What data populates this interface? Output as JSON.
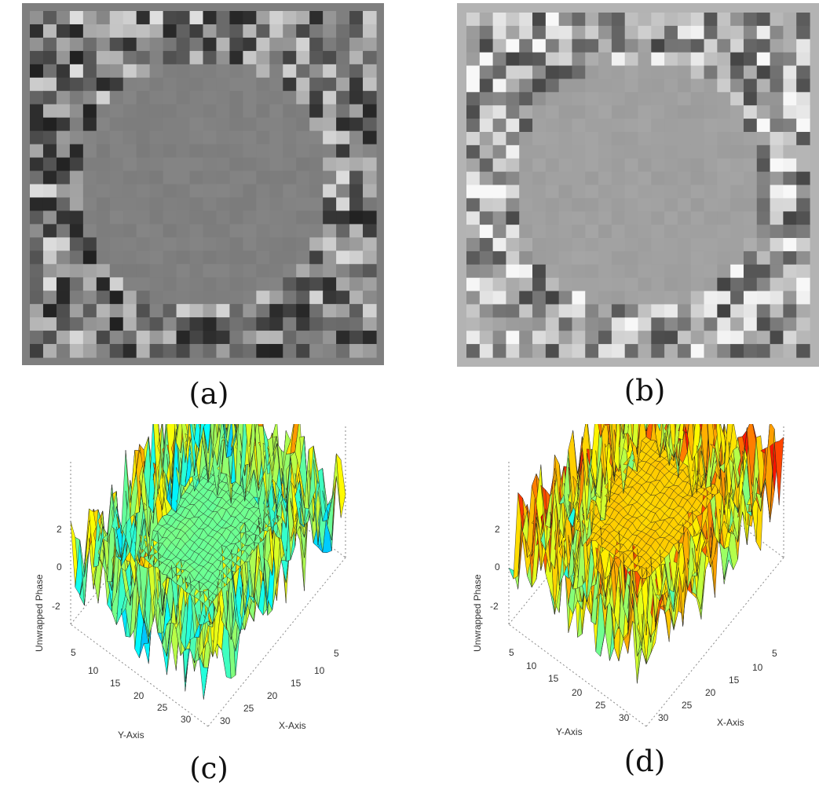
{
  "panels": [
    {
      "id": "a",
      "caption": "(a)",
      "kind": "wrapped-phase-map",
      "background": "#7f7f7f"
    },
    {
      "id": "b",
      "caption": "(b)",
      "kind": "wrapped-phase-map",
      "background": "#b3b3b3"
    },
    {
      "id": "c",
      "caption": "(c)",
      "kind": "unwrapped-phase-surface",
      "center_color": "#6fd8c8",
      "edge_colors": [
        "#e23b1c",
        "#f7a225",
        "#1f3bd0"
      ]
    },
    {
      "id": "d",
      "caption": "(d)",
      "kind": "unwrapped-phase-surface",
      "center_color": "#f5d23c",
      "edge_colors": [
        "#e23b1c",
        "#f7a225",
        "#2fb6de"
      ]
    }
  ],
  "surface_axes": {
    "z_label": "Unwrapped Phase",
    "x_label": "X-Axis",
    "y_label": "Y-Axis",
    "z_ticks": [
      "2",
      "0",
      "-2"
    ],
    "x_ticks": [
      "5",
      "10",
      "15",
      "20",
      "25",
      "30"
    ],
    "y_ticks": [
      "5",
      "10",
      "15",
      "20",
      "25",
      "30"
    ]
  }
}
